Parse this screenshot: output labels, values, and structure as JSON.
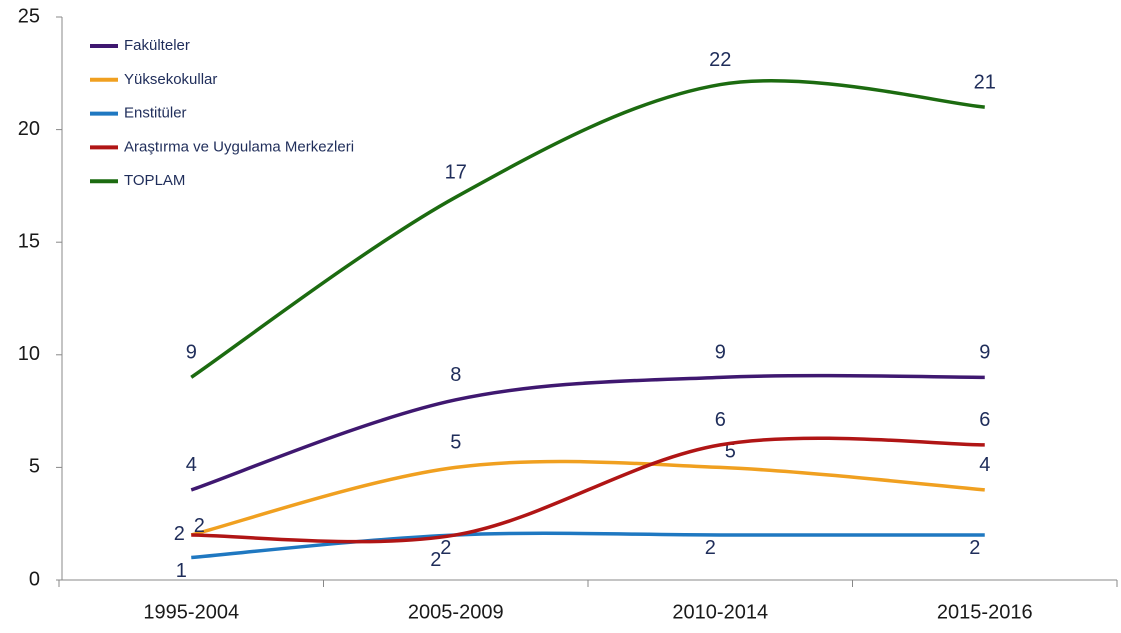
{
  "chart_data": {
    "type": "line",
    "categories": [
      "1995-2004",
      "2005-2009",
      "2010-2014",
      "2015-2016"
    ],
    "series": [
      {
        "name": "Fakülteler",
        "color": "#3f1870",
        "values": [
          4,
          8,
          9,
          9
        ]
      },
      {
        "name": "Yüksekokullar",
        "color": "#f0a020",
        "values": [
          2,
          5,
          5,
          4
        ]
      },
      {
        "name": "Enstitüler",
        "color": "#1f78c1",
        "values": [
          1,
          2,
          2,
          2
        ]
      },
      {
        "name": "Araştırma ve Uygulama Merkezleri",
        "color": "#b01515",
        "values": [
          2,
          2,
          6,
          6
        ]
      },
      {
        "name": "TOPLAM",
        "color": "#1c6b10",
        "values": [
          9,
          17,
          22,
          21
        ]
      }
    ],
    "ylim": [
      0,
      25
    ],
    "yticks": [
      0,
      5,
      10,
      15,
      20,
      25
    ],
    "legend": "top-left",
    "smooth": true
  }
}
